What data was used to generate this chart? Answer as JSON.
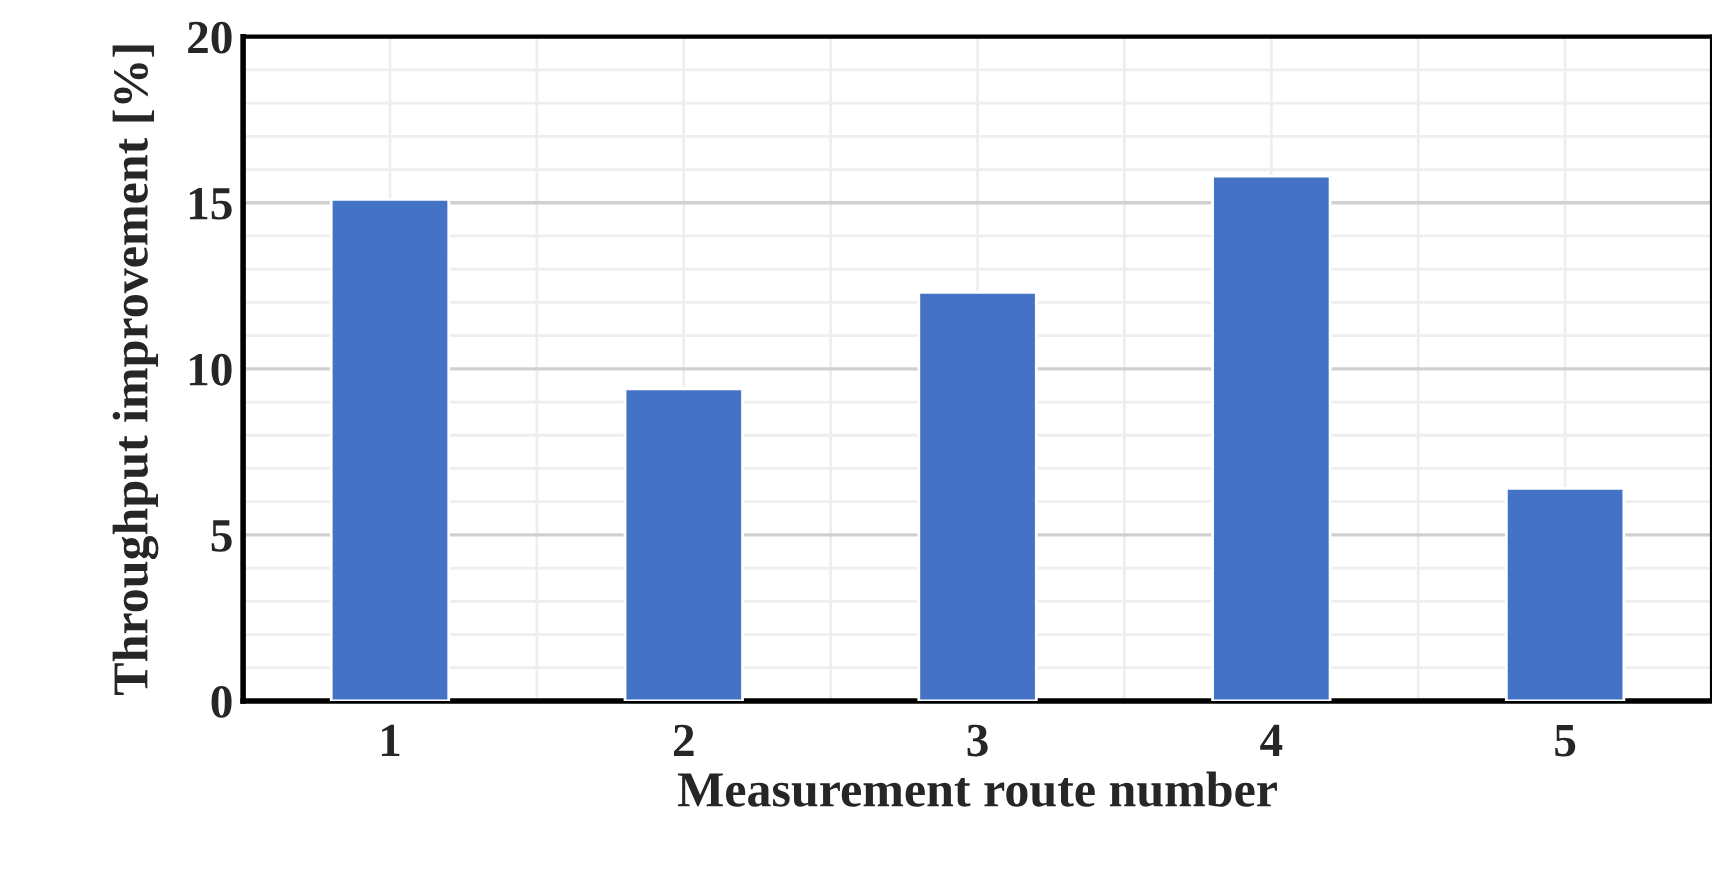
{
  "chart_data": {
    "type": "bar",
    "xlabel": "Measurement route number",
    "ylabel": "Throughput improvement [%]",
    "categories": [
      "1",
      "2",
      "3",
      "4",
      "5"
    ],
    "values": [
      15.1,
      9.4,
      12.3,
      15.8,
      6.4
    ],
    "color": "#4472c4",
    "ylim": [
      0,
      20
    ],
    "yticks": [
      0,
      5,
      10,
      15,
      20
    ],
    "grid": true
  }
}
